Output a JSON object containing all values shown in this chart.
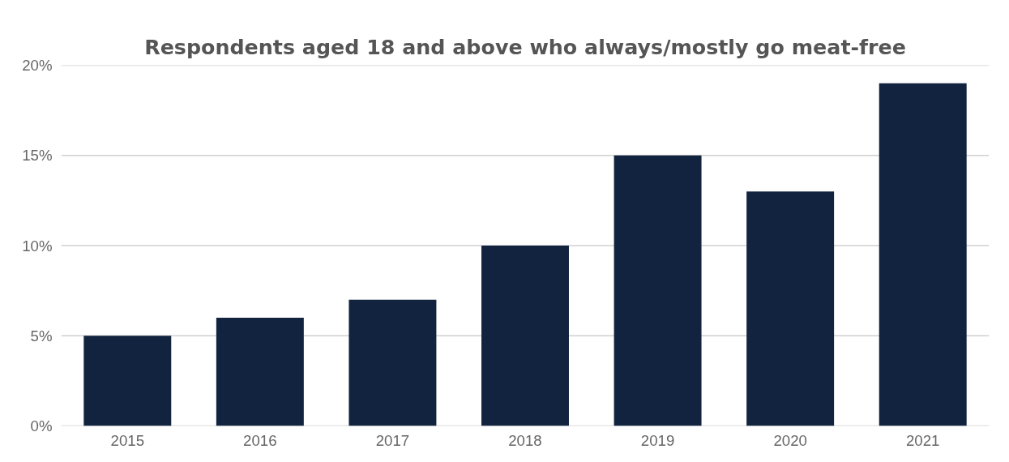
{
  "chart_data": {
    "type": "bar",
    "title": "Respondents aged 18 and above who always/mostly go meat-free",
    "categories": [
      "2015",
      "2016",
      "2017",
      "2018",
      "2019",
      "2020",
      "2021"
    ],
    "values": [
      5,
      6,
      7,
      10,
      15,
      13,
      19
    ],
    "color": "#12233f",
    "ylim": [
      0,
      20
    ],
    "yticks": [
      {
        "value": 0,
        "label": "0%"
      },
      {
        "value": 5,
        "label": "5%"
      },
      {
        "value": 10,
        "label": "10%"
      },
      {
        "value": 15,
        "label": "15%"
      },
      {
        "value": 20,
        "label": "20%"
      }
    ],
    "grid": "y"
  }
}
